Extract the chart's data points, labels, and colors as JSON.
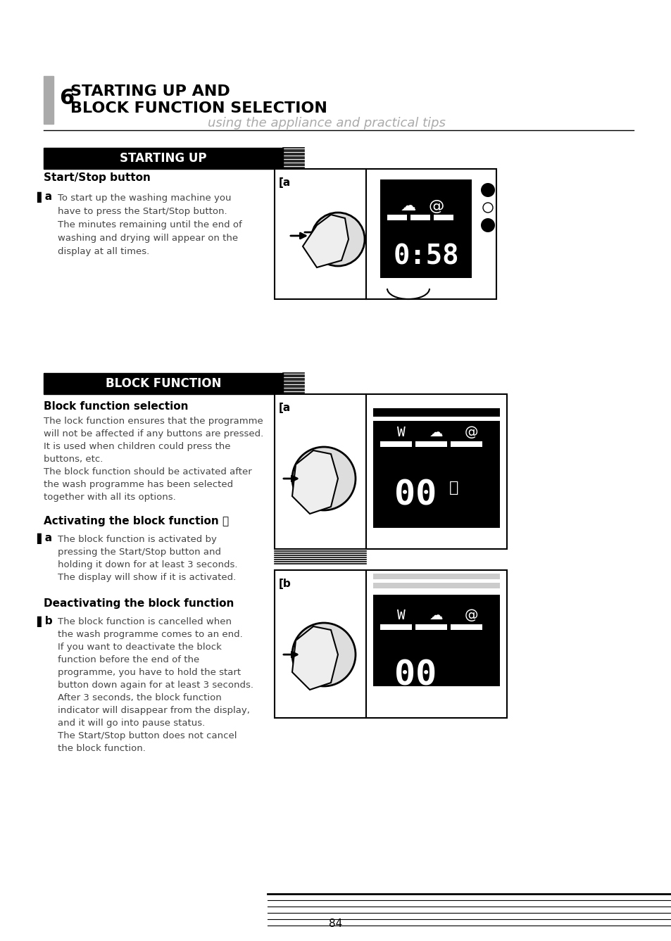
{
  "bg_color": "#ffffff",
  "page_number": "84",
  "header_section_number": "6",
  "header_title_line1": "STARTING UP AND",
  "header_title_line2": "BLOCK FUNCTION SELECTION",
  "header_subtitle": "using the appliance and practical tips",
  "section1_bar_text": "STARTING UP",
  "section1_sub1_title": "Start/Stop button",
  "section1_sub1_label": "a",
  "section1_sub1_text": "To start up the washing machine you\nhave to press the Start/Stop button.\nThe minutes remaining until the end of\nwashing and drying will appear on the\ndisplay at all times.",
  "section2_bar_text": "BLOCK FUNCTION",
  "section2_sub1_title": "Block function selection",
  "section2_sub1_body": "The lock function ensures that the programme\nwill not be affected if any buttons are pressed.\nIt is used when children could press the\nbuttons, etc.\nThe block function should be activated after\nthe wash programme has been selected\ntogether with all its options.",
  "section2_sub2_title": "Activating the block function",
  "section2_sub2_label": "a",
  "section2_sub2_text": "The block function is activated by\npressing the Start/Stop button and\nholding it down for at least 3 seconds.\nThe display will show if it is activated.",
  "section2_sub3_title": "Deactivating the block function",
  "section2_sub3_label": "b",
  "section2_sub3_text": "The block function is cancelled when\nthe wash programme comes to an end.\nIf you want to deactivate the block\nfunction before the end of the\nprogramme, you have to hold the start\nbutton down again for at least 3 seconds.\nAfter 3 seconds, the block function\nindicator will disappear from the display,\nand it will go into pause status.\nThe Start/Stop button does not cancel\nthe block function."
}
